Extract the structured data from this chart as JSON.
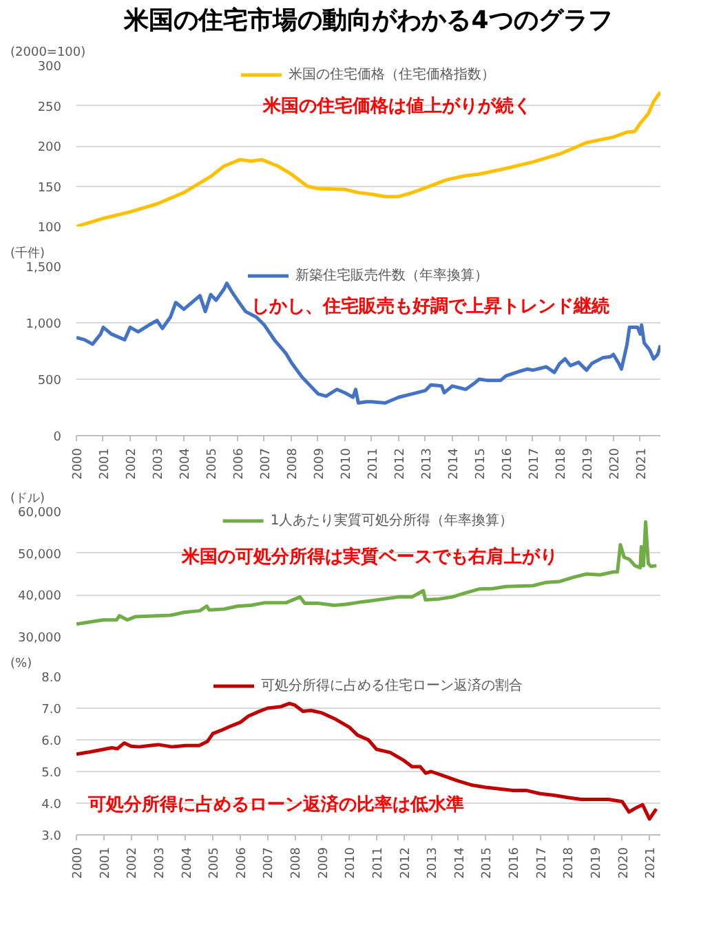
{
  "chart_data": [
    {
      "type": "line",
      "title": "米国の住宅市場の動向がわかる4つのグラフ",
      "ylabel": "(2000=100)",
      "annotations": [
        "米国の住宅価格は値上がりが続く"
      ],
      "x": [
        2000,
        2001,
        2002,
        2003,
        2004,
        2005,
        2005.5,
        2006.1,
        2006.5,
        2006.9,
        2007.5,
        2008,
        2008.6,
        2009,
        2010,
        2010.5,
        2011,
        2011.5,
        2012,
        2012.5,
        2013,
        2013.8,
        2014.5,
        2015,
        2016,
        2017,
        2018,
        2019,
        2020,
        2020.5,
        2020.8,
        2021,
        2021.3,
        2021.5,
        2021.75
      ],
      "series": [
        {
          "name": "米国の住宅価格（住宅価格指数）",
          "color": "#ffc000",
          "values": [
            100,
            110,
            118,
            128,
            142,
            162,
            175,
            183,
            181,
            183,
            175,
            165,
            150,
            147,
            146,
            142,
            140,
            137,
            137,
            142,
            148,
            158,
            163,
            165,
            172,
            180,
            190,
            204,
            211,
            217,
            218,
            228,
            240,
            255,
            267
          ]
        }
      ],
      "xlim": [
        2000,
        2021.75
      ],
      "xticks": [
        2000,
        2001,
        2002,
        2003,
        2004,
        2005,
        2006,
        2007,
        2008,
        2009,
        2010,
        2011,
        2012,
        2013,
        2014,
        2015,
        2016,
        2017,
        2018,
        2019,
        2020,
        2021
      ],
      "ylim": [
        100,
        300
      ],
      "yticks": [
        100,
        150,
        200,
        250,
        300
      ],
      "grid": "y",
      "legend": "top",
      "tick_labels": "y"
    },
    {
      "type": "line",
      "ylabel": "(千件)",
      "annotations": [
        "しかし、住宅販売も好調で上昇トレンド継続"
      ],
      "x": [
        2000,
        2000.3,
        2000.6,
        2000.9,
        2001,
        2001.3,
        2001.8,
        2002,
        2002.3,
        2002.7,
        2003,
        2003.2,
        2003.5,
        2003.7,
        2004,
        2004.4,
        2004.6,
        2004.8,
        2005,
        2005.2,
        2005.5,
        2005.6,
        2005.8,
        2006,
        2006.3,
        2006.7,
        2007,
        2007.4,
        2007.8,
        2008,
        2008.4,
        2008.8,
        2009,
        2009.3,
        2009.7,
        2010,
        2010.3,
        2010.4,
        2010.5,
        2010.8,
        2011,
        2011.5,
        2012,
        2012.5,
        2013,
        2013.2,
        2013.6,
        2013.7,
        2014,
        2014.5,
        2014.8,
        2015,
        2015.3,
        2015.8,
        2016,
        2016.5,
        2016.8,
        2017,
        2017.5,
        2017.8,
        2018,
        2018.2,
        2018.4,
        2018.7,
        2019,
        2019.2,
        2019.6,
        2019.9,
        2020,
        2020.2,
        2020.3,
        2020.5,
        2020.6,
        2020.9,
        2021,
        2021.05,
        2021.15,
        2021.35,
        2021.5,
        2021.65,
        2021.75
      ],
      "series": [
        {
          "name": "新築住宅販売件数（年率換算）",
          "color": "#4472c4",
          "values": [
            870,
            850,
            810,
            900,
            960,
            900,
            850,
            960,
            920,
            980,
            1020,
            950,
            1050,
            1180,
            1120,
            1200,
            1240,
            1100,
            1250,
            1200,
            1300,
            1350,
            1270,
            1200,
            1100,
            1050,
            980,
            840,
            730,
            650,
            520,
            420,
            370,
            350,
            410,
            380,
            340,
            410,
            290,
            300,
            300,
            290,
            340,
            370,
            400,
            450,
            440,
            380,
            440,
            410,
            460,
            500,
            490,
            490,
            530,
            570,
            590,
            580,
            610,
            560,
            640,
            680,
            620,
            650,
            580,
            640,
            690,
            700,
            720,
            640,
            590,
            800,
            960,
            960,
            900,
            980,
            820,
            760,
            680,
            720,
            800
          ]
        }
      ],
      "xlim": [
        2000,
        2021.75
      ],
      "xticks": [
        2000,
        2001,
        2002,
        2003,
        2004,
        2005,
        2006,
        2007,
        2008,
        2009,
        2010,
        2011,
        2012,
        2013,
        2014,
        2015,
        2016,
        2017,
        2018,
        2019,
        2020,
        2021
      ],
      "ylim": [
        0,
        1500
      ],
      "yticks": [
        {
          "value": 0,
          "label": "0"
        },
        {
          "value": 500,
          "label": "500"
        },
        {
          "value": 1000,
          "label": "1,000"
        },
        {
          "value": 1500,
          "label": "1,500"
        }
      ],
      "grid": "y",
      "legend": "top"
    },
    {
      "type": "line",
      "ylabel": "(ドル)",
      "annotations": [
        "米国の可処分所得は実質ベースでも右肩上がり"
      ],
      "x": [
        2000,
        2000.5,
        2001,
        2001.5,
        2001.6,
        2001.9,
        2002.2,
        2003,
        2003.5,
        2004,
        2004.6,
        2004.85,
        2004.95,
        2005.5,
        2006,
        2006.5,
        2007,
        2007.8,
        2008.33,
        2008.5,
        2009,
        2009.6,
        2010,
        2010.6,
        2011,
        2012,
        2012.5,
        2012.92,
        2013,
        2013.5,
        2014,
        2014.5,
        2015,
        2015.5,
        2016,
        2017,
        2017.5,
        2018,
        2018.5,
        2019,
        2019.5,
        2020,
        2020.15,
        2020.26,
        2020.4,
        2020.6,
        2020.8,
        2021,
        2021.04,
        2021.12,
        2021.2,
        2021.3,
        2021.4,
        2021.6
      ],
      "series": [
        {
          "name": "1人あたり実質可処分所得（年率換算）",
          "color": "#70ad47",
          "values": [
            33000,
            33500,
            34000,
            34000,
            35000,
            34000,
            34800,
            35000,
            35100,
            35800,
            36200,
            37300,
            36400,
            36600,
            37300,
            37500,
            38100,
            38100,
            39500,
            38000,
            38000,
            37500,
            37700,
            38300,
            38600,
            39500,
            39500,
            41000,
            38800,
            39000,
            39500,
            40500,
            41400,
            41500,
            42000,
            42200,
            43000,
            43200,
            44200,
            45000,
            44800,
            45500,
            45500,
            52000,
            49000,
            48500,
            47000,
            46500,
            51500,
            47000,
            57500,
            47500,
            46800,
            47000
          ]
        }
      ],
      "xlim": [
        2000,
        2021.75
      ],
      "xticks": [
        2000,
        2001,
        2002,
        2003,
        2004,
        2005,
        2006,
        2007,
        2008,
        2009,
        2010,
        2011,
        2012,
        2013,
        2014,
        2015,
        2016,
        2017,
        2018,
        2019,
        2020,
        2021
      ],
      "ylim": [
        30000,
        60000
      ],
      "yticks": [
        {
          "value": 30000,
          "label": "30,000"
        },
        {
          "value": 40000,
          "label": "40,000"
        },
        {
          "value": 50000,
          "label": "50,000"
        },
        {
          "value": 60000,
          "label": "60,000"
        }
      ],
      "grid": "y",
      "legend": "top",
      "tick_labels": "y"
    },
    {
      "type": "line",
      "ylabel": "(%)",
      "annotations": [
        "可処分所得に占めるローン返済の比率は低水準"
      ],
      "x": [
        2000,
        2000.5,
        2001,
        2001.3,
        2001.5,
        2001.75,
        2002,
        2002.3,
        2002.7,
        2003,
        2003.5,
        2004,
        2004.5,
        2004.8,
        2005,
        2005.3,
        2005.7,
        2006,
        2006.3,
        2006.7,
        2007,
        2007.5,
        2007.8,
        2008,
        2008.3,
        2008.6,
        2009,
        2009.5,
        2010,
        2010.3,
        2010.7,
        2011,
        2011.5,
        2012,
        2012.3,
        2012.6,
        2012.8,
        2013,
        2013.5,
        2014,
        2014.5,
        2015,
        2015.5,
        2016,
        2016.5,
        2017,
        2017.5,
        2018,
        2018.5,
        2019,
        2019.5,
        2020,
        2020.25,
        2020.5,
        2020.75,
        2021,
        2021.25
      ],
      "series": [
        {
          "name": "可処分所得に占める住宅ローン返済の割合",
          "color": "#c00000",
          "values": [
            5.55,
            5.62,
            5.7,
            5.75,
            5.72,
            5.9,
            5.8,
            5.78,
            5.82,
            5.85,
            5.78,
            5.82,
            5.82,
            5.95,
            6.2,
            6.3,
            6.45,
            6.55,
            6.75,
            6.9,
            7.0,
            7.05,
            7.15,
            7.1,
            6.9,
            6.93,
            6.85,
            6.65,
            6.4,
            6.15,
            6.0,
            5.7,
            5.6,
            5.35,
            5.15,
            5.15,
            4.95,
            5.0,
            4.85,
            4.7,
            4.57,
            4.5,
            4.45,
            4.4,
            4.4,
            4.3,
            4.25,
            4.18,
            4.12,
            4.12,
            4.12,
            4.05,
            3.72,
            3.85,
            3.95,
            3.5,
            3.82
          ]
        }
      ],
      "xlim": [
        2000,
        2021.4
      ],
      "xticks": [
        2000,
        2001,
        2002,
        2003,
        2004,
        2005,
        2006,
        2007,
        2008,
        2009,
        2010,
        2011,
        2012,
        2013,
        2014,
        2015,
        2016,
        2017,
        2018,
        2019,
        2020,
        2021
      ],
      "ylim": [
        3,
        8
      ],
      "yticks": [
        {
          "value": 3,
          "label": "3.0"
        },
        {
          "value": 4,
          "label": "4.0"
        },
        {
          "value": 5,
          "label": "5.0"
        },
        {
          "value": 6,
          "label": "6.0"
        },
        {
          "value": 7,
          "label": "7.0"
        },
        {
          "value": 8,
          "label": "8.0"
        }
      ],
      "grid": "y",
      "legend": "top"
    }
  ]
}
